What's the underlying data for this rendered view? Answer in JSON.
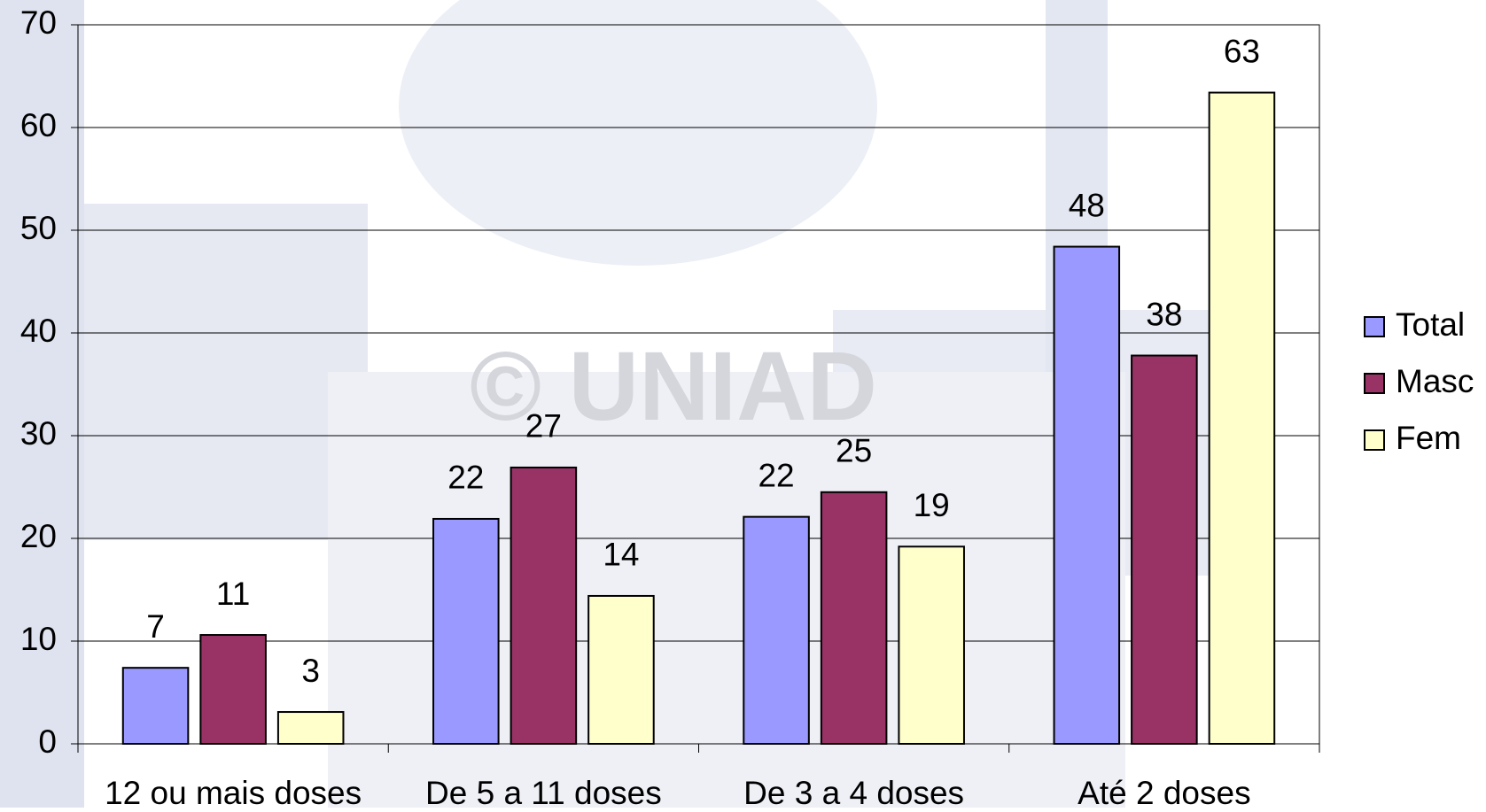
{
  "chart_data": {
    "type": "bar",
    "watermark": "© UNIAD",
    "categories": [
      "12 ou mais doses",
      "De 5 a 11 doses",
      "De 3 a 4 doses",
      "Até 2 doses"
    ],
    "series": [
      {
        "name": "Total",
        "color": "#9999ff",
        "values": [
          7.4,
          21.9,
          22.1,
          48.4
        ],
        "value_labels": [
          "7",
          "22",
          "22",
          "48"
        ]
      },
      {
        "name": "Masc",
        "color": "#993366",
        "values": [
          10.6,
          26.9,
          24.5,
          37.8
        ],
        "value_labels": [
          "11",
          "27",
          "25",
          "38"
        ]
      },
      {
        "name": "Fem",
        "color": "#ffffcc",
        "values": [
          3.1,
          14.4,
          19.2,
          63.4
        ],
        "value_labels": [
          "3",
          "14",
          "19",
          "63"
        ]
      }
    ],
    "ylim": [
      0,
      70
    ],
    "yticks": [
      0,
      10,
      20,
      30,
      40,
      50,
      60,
      70
    ],
    "grid": true,
    "legend": "right"
  }
}
